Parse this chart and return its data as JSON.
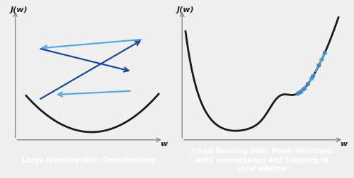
{
  "background_color": "#f0f0f0",
  "panel_bg": "#f0f0f0",
  "curve_color": "#1a1a1a",
  "curve_lw": 2.0,
  "arrow_color_dark": "#1a4a9a",
  "arrow_color_light": "#55aadd",
  "dot_color": "#4488cc",
  "label_left": "J(w)",
  "label_right": "J(w)",
  "xlabel": "w",
  "caption_left": "Large learning rate: Overshooting",
  "caption_right": "Small learning rate: Many iterations\nuntil convergence and trapping in\nlocal minima",
  "caption_bg": "#666666",
  "caption_fg": "#ffffff",
  "caption_fontsize": 7.0,
  "caption_fontweight": "bold"
}
